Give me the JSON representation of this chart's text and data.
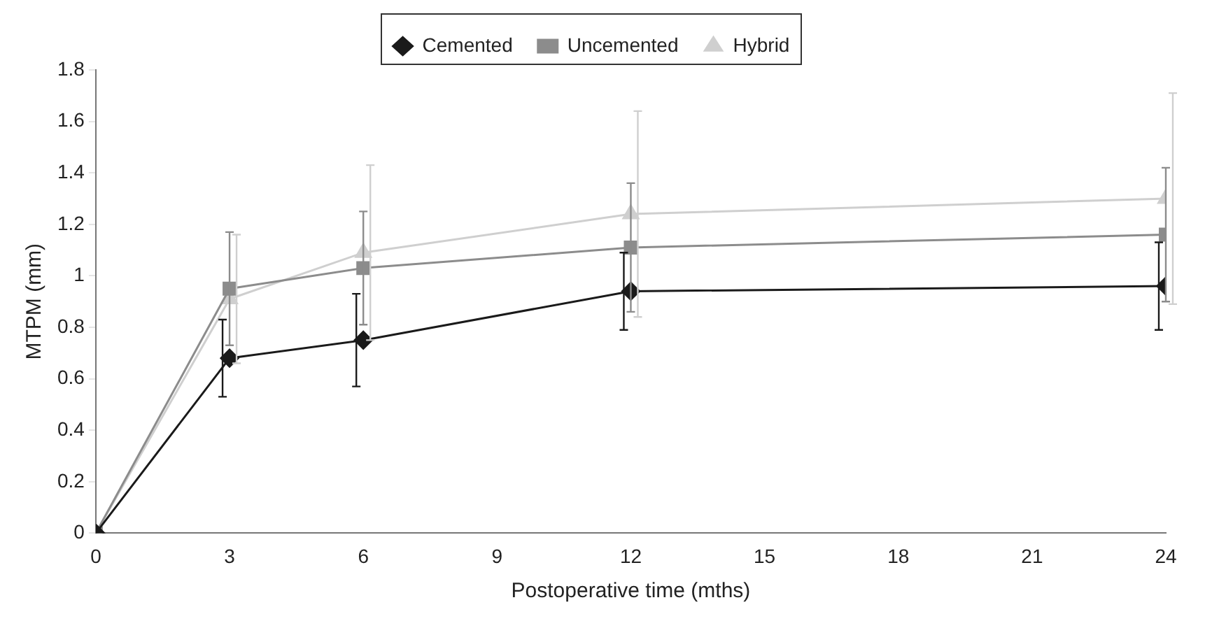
{
  "chart_data": {
    "type": "line",
    "xlabel": "Postoperative time (mths)",
    "ylabel": "MTPM (mm)",
    "x": [
      0,
      3,
      6,
      12,
      24
    ],
    "series": [
      {
        "name": "Cemented",
        "color": "#1a1a1a",
        "marker": "diamond",
        "values": [
          0,
          0.68,
          0.75,
          0.94,
          0.96
        ],
        "errors": [
          null,
          0.15,
          0.18,
          0.15,
          0.17
        ]
      },
      {
        "name": "Uncemented",
        "color": "#8c8c8c",
        "marker": "square",
        "values": [
          0,
          0.95,
          1.03,
          1.11,
          1.16
        ],
        "errors": [
          null,
          0.22,
          0.22,
          0.25,
          0.26
        ]
      },
      {
        "name": "Hybrid",
        "color": "#cfcfcf",
        "marker": "triangle",
        "values": [
          0,
          0.91,
          1.09,
          1.24,
          1.3
        ],
        "errors": [
          null,
          0.25,
          0.34,
          0.4,
          0.41
        ]
      }
    ],
    "xlim": [
      0,
      24
    ],
    "xticks": [
      0,
      3,
      6,
      9,
      12,
      15,
      18,
      21,
      24
    ],
    "ylim": [
      0,
      1.8
    ],
    "yticks": [
      0,
      0.2,
      0.4,
      0.6,
      0.8,
      1,
      1.2,
      1.4,
      1.6,
      1.8
    ],
    "grid": false,
    "legend": "top",
    "line_style": "solid"
  }
}
